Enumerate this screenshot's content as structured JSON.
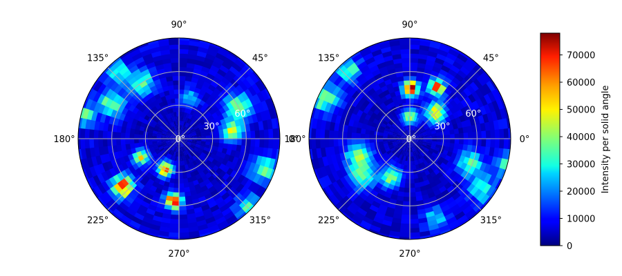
{
  "chart_data": {
    "type": "heatmap",
    "projection": "polar",
    "colormap": "jet",
    "angular_tick_labels": [
      "0°",
      "45°",
      "90°",
      "135°",
      "180°",
      "225°",
      "270°",
      "315°"
    ],
    "radial_tick_labels": [
      "0°",
      "30°",
      "60°"
    ],
    "radial_range_deg": [
      0,
      90
    ],
    "grid": true,
    "panels": [
      {
        "name": "left",
        "background_intensity": 8000,
        "hotspots": [
          {
            "theta_deg": 124,
            "r_deg": 60,
            "intensity": 34000,
            "spread": 5
          },
          {
            "theta_deg": 132,
            "r_deg": 80,
            "intensity": 28000,
            "spread": 4
          },
          {
            "theta_deg": 153,
            "r_deg": 68,
            "intensity": 36000,
            "spread": 5
          },
          {
            "theta_deg": 166,
            "r_deg": 87,
            "intensity": 32000,
            "spread": 4
          },
          {
            "theta_deg": 206,
            "r_deg": 38,
            "intensity": 52000,
            "spread": 3
          },
          {
            "theta_deg": 220,
            "r_deg": 66,
            "intensity": 68000,
            "spread": 4
          },
          {
            "theta_deg": 246,
            "r_deg": 30,
            "intensity": 60000,
            "spread": 3
          },
          {
            "theta_deg": 265,
            "r_deg": 56,
            "intensity": 78000,
            "spread": 3
          },
          {
            "theta_deg": 28,
            "r_deg": 60,
            "intensity": 40000,
            "spread": 5
          },
          {
            "theta_deg": 8,
            "r_deg": 48,
            "intensity": 44000,
            "spread": 4
          },
          {
            "theta_deg": 340,
            "r_deg": 82,
            "intensity": 36000,
            "spread": 5
          },
          {
            "theta_deg": 315,
            "r_deg": 86,
            "intensity": 30000,
            "spread": 4
          },
          {
            "theta_deg": 75,
            "r_deg": 38,
            "intensity": 22000,
            "spread": 4
          }
        ]
      },
      {
        "name": "right",
        "background_intensity": 8000,
        "hotspots": [
          {
            "theta_deg": 89,
            "r_deg": 45,
            "intensity": 78000,
            "spread": 3
          },
          {
            "theta_deg": 62,
            "r_deg": 52,
            "intensity": 66000,
            "spread": 3
          },
          {
            "theta_deg": 45,
            "r_deg": 33,
            "intensity": 52000,
            "spread": 4
          },
          {
            "theta_deg": 90,
            "r_deg": 20,
            "intensity": 44000,
            "spread": 3
          },
          {
            "theta_deg": 132,
            "r_deg": 82,
            "intensity": 36000,
            "spread": 4
          },
          {
            "theta_deg": 154,
            "r_deg": 84,
            "intensity": 38000,
            "spread": 5
          },
          {
            "theta_deg": 198,
            "r_deg": 48,
            "intensity": 36000,
            "spread": 5
          },
          {
            "theta_deg": 218,
            "r_deg": 54,
            "intensity": 34000,
            "spread": 5
          },
          {
            "theta_deg": 244,
            "r_deg": 38,
            "intensity": 40000,
            "spread": 4
          },
          {
            "theta_deg": 338,
            "r_deg": 58,
            "intensity": 32000,
            "spread": 5
          },
          {
            "theta_deg": 325,
            "r_deg": 78,
            "intensity": 30000,
            "spread": 5
          },
          {
            "theta_deg": 345,
            "r_deg": 88,
            "intensity": 30000,
            "spread": 4
          },
          {
            "theta_deg": 288,
            "r_deg": 76,
            "intensity": 28000,
            "spread": 4
          }
        ]
      }
    ],
    "colorbar": {
      "label": "Intensity per solid angle",
      "range": [
        0,
        78000
      ],
      "ticks": [
        0,
        10000,
        20000,
        30000,
        40000,
        50000,
        60000,
        70000
      ],
      "tick_labels": [
        "0",
        "10000",
        "20000",
        "30000",
        "40000",
        "50000",
        "60000",
        "70000"
      ]
    }
  }
}
